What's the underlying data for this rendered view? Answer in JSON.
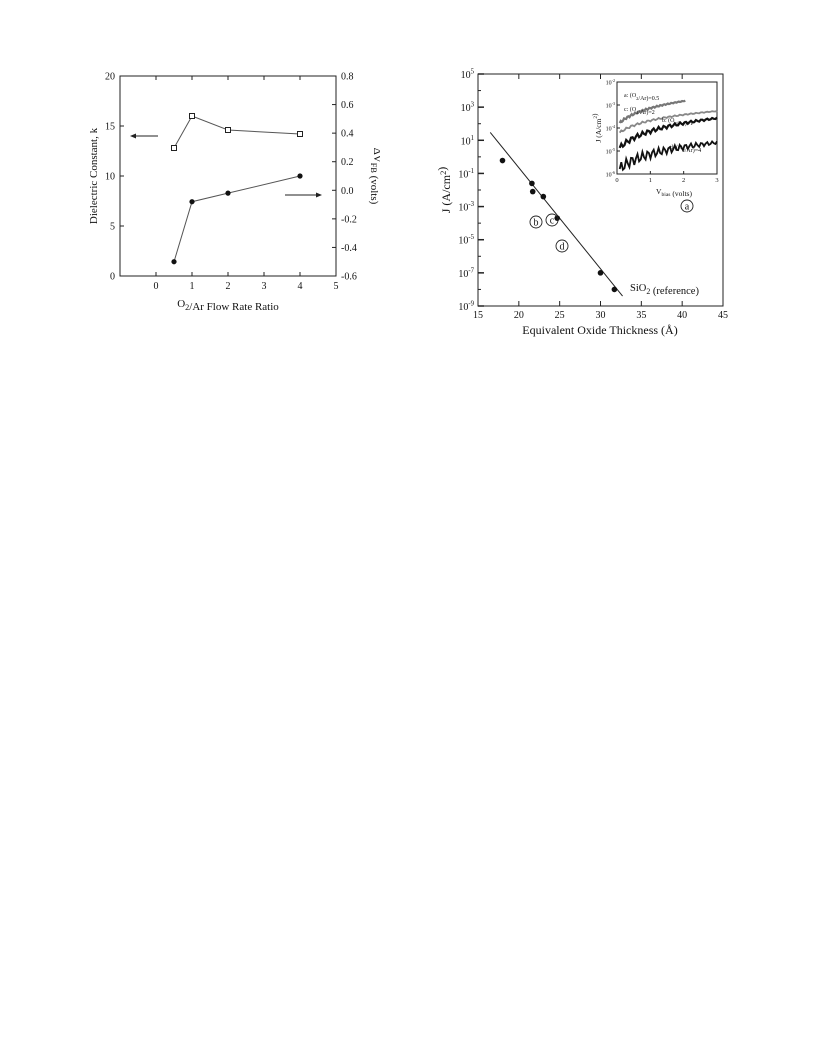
{
  "chart_data": [
    {
      "type": "line",
      "x": [
        0.5,
        1,
        2,
        4
      ],
      "series": [
        {
          "values": [
            12.8,
            16.0,
            14.6,
            14.2
          ],
          "axis": "left",
          "marker": "open-square"
        },
        {
          "values": [
            -0.5,
            -0.08,
            -0.02,
            0.1
          ],
          "axis": "right",
          "marker": "filled-circle"
        }
      ],
      "xlabel": "O2/Ar Flow Rate Ratio",
      "ylabel": "Dielectric Constant, k",
      "y2label": "ΔVFB (volts)",
      "xlim": [
        -1,
        5
      ],
      "ylim": [
        0,
        20
      ],
      "y2lim": [
        -0.6,
        0.8
      ],
      "xticks": [
        "0",
        "1",
        "2",
        "3",
        "4",
        "5"
      ],
      "yticks": [
        "0",
        "5",
        "10",
        "15",
        "20"
      ],
      "y2ticks": [
        "-0.6",
        "-0.4",
        "-0.2",
        "0.0",
        "0.2",
        "0.4",
        "0.6",
        "0.8"
      ],
      "grid": false
    },
    {
      "type": "scatter",
      "log_y": true,
      "points": [
        {
          "x": 18.0,
          "y": 0.6
        },
        {
          "x": 21.6,
          "y": 0.025
        },
        {
          "x": 21.7,
          "y": 0.008
        },
        {
          "x": 23.0,
          "y": 0.004
        },
        {
          "x": 24.7,
          "y": 0.0002
        },
        {
          "x": 30.0,
          "y": 1e-07
        },
        {
          "x": 31.7,
          "y": 1e-08
        }
      ],
      "fit_line": {
        "x": [
          16.5,
          32.7
        ],
        "y": [
          30,
          4e-09
        ]
      },
      "annotations": [
        "b",
        "c",
        "d",
        "a",
        "SiO2 (reference)"
      ],
      "xlabel": "Equivalent Oxide Thickness (Å)",
      "ylabel": "J (A/cm²)",
      "xlim": [
        15,
        45
      ],
      "ylim_exp": [
        -9,
        5
      ],
      "xticks": [
        "15",
        "20",
        "25",
        "30",
        "35",
        "40",
        "45"
      ],
      "yticks_exp": [
        "-9",
        "-7",
        "-5",
        "-3",
        "-1",
        "1",
        "3",
        "5"
      ],
      "inset": {
        "xlabel": "Vbias (volts)",
        "ylabel": "J (A/cm²)",
        "xlim": [
          0,
          3
        ],
        "ylim_exp": [
          -6,
          -2
        ],
        "xticks": [
          "0",
          "1",
          "2",
          "3"
        ],
        "yticks_exp": [
          "-6",
          "-5",
          "-4",
          "-3",
          "-2"
        ],
        "curve_labels": [
          "a: (O2/Ar)=0.5",
          "c: (O2/Ar)=2",
          "b: (O2/Ar)=1",
          "d: (O2/Ar)=4"
        ]
      },
      "grid": false
    }
  ]
}
